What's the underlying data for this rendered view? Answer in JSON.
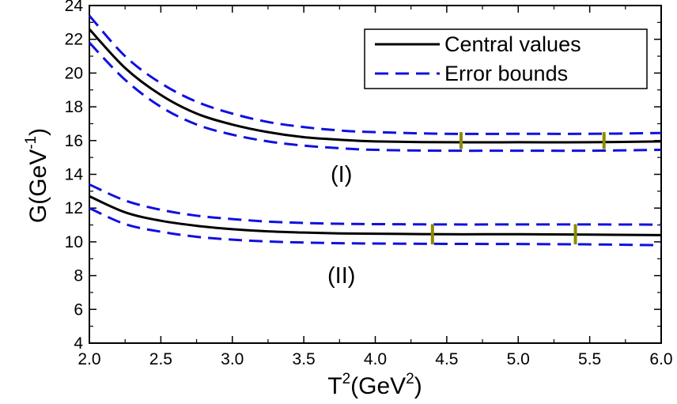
{
  "chart_data": {
    "type": "line",
    "xlabel": "T²(GeV²)",
    "xlabel_parts": {
      "base": "T",
      "sup1": "2",
      "mid": "(GeV",
      "sup2": "2",
      "end": ")"
    },
    "ylabel": "G(GeV⁻¹)",
    "ylabel_parts": {
      "base": "G(GeV",
      "sup": "-1",
      "end": ")"
    },
    "xlim": [
      2.0,
      6.0
    ],
    "ylim": [
      4,
      24
    ],
    "xticks": [
      "2.0",
      "2.5",
      "3.0",
      "3.5",
      "4.0",
      "4.5",
      "5.0",
      "5.5",
      "6.0"
    ],
    "yticks": [
      "4",
      "6",
      "8",
      "10",
      "12",
      "14",
      "16",
      "18",
      "20",
      "22",
      "24"
    ],
    "legend": {
      "placement": "top-right",
      "entries": [
        {
          "label": "Central values",
          "style": "solid",
          "color": "#000000"
        },
        {
          "label": "Error bounds",
          "style": "dashed",
          "color": "#1010e0"
        }
      ]
    },
    "annotations": [
      "(I)",
      "(II)"
    ],
    "x": [
      2.0,
      2.25,
      2.5,
      2.75,
      3.0,
      3.25,
      3.5,
      3.75,
      4.0,
      4.5,
      5.0,
      5.5,
      6.0
    ],
    "series": [
      {
        "name": "Central values",
        "group": "I",
        "style": "solid",
        "color": "#000000",
        "values": [
          22.6,
          20.3,
          18.7,
          17.6,
          16.95,
          16.5,
          16.2,
          16.05,
          15.95,
          15.9,
          15.9,
          15.9,
          15.95
        ]
      },
      {
        "name": "Error bounds",
        "group": "I",
        "style": "dashed",
        "color": "#1010e0",
        "values": [
          23.4,
          21.0,
          19.4,
          18.3,
          17.6,
          17.1,
          16.8,
          16.6,
          16.5,
          16.4,
          16.4,
          16.4,
          16.45
        ]
      },
      {
        "name": "Error bounds",
        "group": "I",
        "style": "dashed",
        "color": "#1010e0",
        "values": [
          21.8,
          19.6,
          18.0,
          16.95,
          16.35,
          15.95,
          15.7,
          15.55,
          15.45,
          15.4,
          15.4,
          15.4,
          15.45
        ]
      },
      {
        "name": "Central values",
        "group": "II",
        "style": "solid",
        "color": "#000000",
        "values": [
          12.7,
          11.75,
          11.25,
          10.95,
          10.75,
          10.62,
          10.55,
          10.5,
          10.48,
          10.45,
          10.45,
          10.43,
          10.4
        ]
      },
      {
        "name": "Error bounds",
        "group": "II",
        "style": "dashed",
        "color": "#1010e0",
        "values": [
          13.4,
          12.45,
          11.9,
          11.55,
          11.35,
          11.2,
          11.12,
          11.07,
          11.05,
          11.03,
          11.03,
          11.03,
          11.02
        ]
      },
      {
        "name": "Error bounds",
        "group": "II",
        "style": "dashed",
        "color": "#1010e0",
        "values": [
          12.0,
          11.05,
          10.6,
          10.3,
          10.13,
          10.02,
          9.96,
          9.92,
          9.9,
          9.88,
          9.87,
          9.85,
          9.8
        ]
      }
    ],
    "markers": [
      {
        "group": "I",
        "x": 4.6,
        "y": 16.0,
        "half_height": 0.5,
        "color": "#8b8b00"
      },
      {
        "group": "I",
        "x": 5.6,
        "y": 16.0,
        "half_height": 0.5,
        "color": "#8b8b00"
      },
      {
        "group": "II",
        "x": 4.4,
        "y": 10.45,
        "half_height": 0.6,
        "color": "#8b8b00"
      },
      {
        "group": "II",
        "x": 5.4,
        "y": 10.45,
        "half_height": 0.6,
        "color": "#8b8b00"
      }
    ]
  }
}
